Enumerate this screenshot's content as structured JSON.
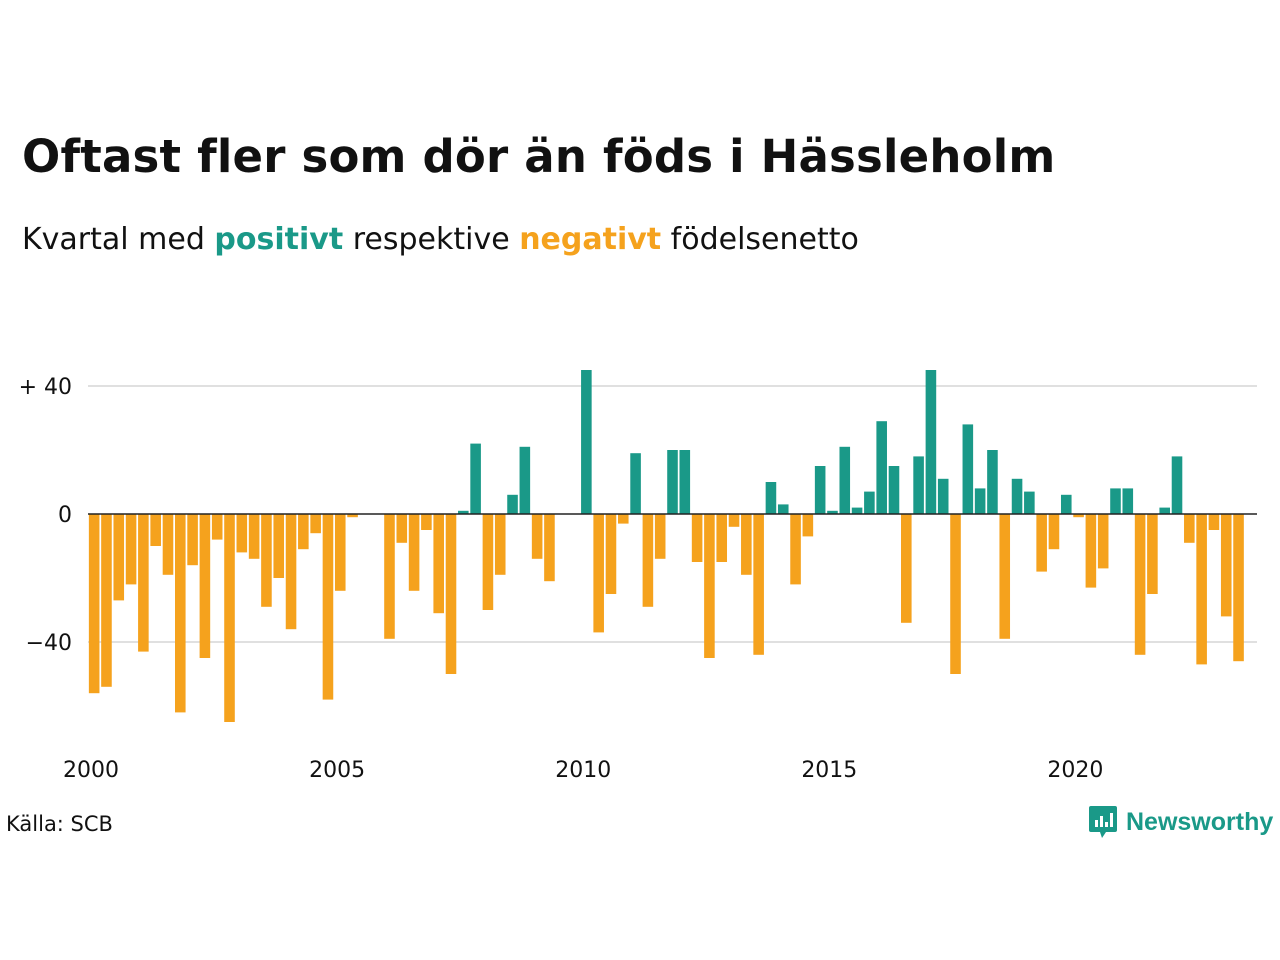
{
  "title": "Oftast fler som dör än föds i Hässleholm",
  "subtitle": {
    "part1": "Kvartal med ",
    "positive_word": "positivt",
    "part2": " respektive ",
    "negative_word": "negativt",
    "part3": " födelsenetto"
  },
  "source": "Källa: SCB",
  "logo": {
    "text": "Newsworthy",
    "icon": "newsworthy-logo-icon"
  },
  "colors": {
    "positive": "#1a9988",
    "negative": "#f5a21d",
    "grid": "#e0e0e0",
    "zero": "#222222"
  },
  "chart_data": {
    "type": "bar",
    "title": "Oftast fler som dör än föds i Hässleholm",
    "subtitle": "Kvartal med positivt respektive negativt födelsenetto",
    "x_start": 2000,
    "x_step": 0.25,
    "xlim": [
      2000,
      2023.75
    ],
    "ylim": [
      -66,
      46
    ],
    "y_ticks": [
      {
        "value": 40,
        "label": "+ 40"
      },
      {
        "value": 0,
        "label": "0"
      },
      {
        "value": -40,
        "label": "−40"
      }
    ],
    "x_ticks": [
      "2000",
      "2005",
      "2010",
      "2015",
      "2020"
    ],
    "x_tick_values": [
      2000,
      2005,
      2010,
      2015,
      2020
    ],
    "grid": true,
    "values": [
      -56,
      -54,
      -27,
      -22,
      -43,
      -10,
      -19,
      -62,
      -16,
      -45,
      -8,
      -65,
      -12,
      -14,
      -29,
      -20,
      -36,
      -11,
      -6,
      -58,
      -24,
      -1,
      0,
      0,
      -39,
      -9,
      -24,
      -5,
      -31,
      -50,
      1,
      22,
      -30,
      -19,
      6,
      21,
      -14,
      -21,
      0,
      0,
      45,
      -37,
      -25,
      -3,
      19,
      -29,
      -14,
      20,
      20,
      -15,
      -45,
      -15,
      -4,
      -19,
      -44,
      10,
      3,
      -22,
      -7,
      15,
      1,
      21,
      2,
      7,
      29,
      15,
      -34,
      18,
      45,
      11,
      -50,
      28,
      8,
      20,
      -39,
      11,
      7,
      -18,
      -11,
      6,
      -1,
      -23,
      -17,
      8,
      8,
      -44,
      -25,
      2,
      18,
      -9,
      -47,
      -5,
      -32,
      -46
    ]
  }
}
